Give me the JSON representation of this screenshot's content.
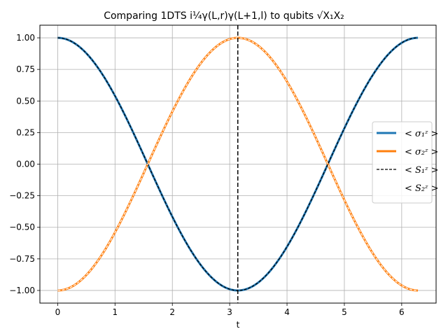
{
  "chart_data": {
    "type": "line",
    "title": "Comparing 1DTS i¼γ(L,r)γ(L+1,l) to qubits √X₁X₂",
    "xlabel": "t",
    "ylabel": "",
    "xlim": [
      -0.31,
      6.6
    ],
    "ylim": [
      -1.1,
      1.1
    ],
    "xticks": [
      "0",
      "1",
      "2",
      "3",
      "4",
      "5",
      "6"
    ],
    "yticks": [
      "1.00",
      "0.75",
      "0.50",
      "0.25",
      "0.00",
      "−0.25",
      "−0.50",
      "−0.75",
      "−1.00"
    ],
    "grid": true,
    "legend_position": "center-right",
    "vline": {
      "x": 3.1416,
      "style": "dashed",
      "color": "#000000"
    },
    "x_range": [
      0,
      6.2832
    ],
    "series": [
      {
        "name": "< σ₁ᶻ >",
        "function": "cos(t)",
        "color": "#1f77b4",
        "style": "solid-thick",
        "points": [
          [
            0,
            1.0
          ],
          [
            0.785,
            0.707
          ],
          [
            1.571,
            0.0
          ],
          [
            2.356,
            -0.707
          ],
          [
            3.142,
            -1.0
          ],
          [
            3.927,
            -0.707
          ],
          [
            4.712,
            0.0
          ],
          [
            5.498,
            0.707
          ],
          [
            6.283,
            1.0
          ]
        ]
      },
      {
        "name": "< σ₂ᶻ >",
        "function": "-cos(t)",
        "color": "#ff7f0e",
        "style": "solid-thick",
        "points": [
          [
            0,
            -1.0
          ],
          [
            0.785,
            -0.707
          ],
          [
            1.571,
            0.0
          ],
          [
            2.356,
            0.707
          ],
          [
            3.142,
            1.0
          ],
          [
            3.927,
            0.707
          ],
          [
            4.712,
            0.0
          ],
          [
            5.498,
            -0.707
          ],
          [
            6.283,
            -1.0
          ]
        ]
      },
      {
        "name": "< S₁ᶻ >",
        "function": "cos(t)",
        "color": "#000000",
        "style": "dashed"
      },
      {
        "name": "< S₂ᶻ >",
        "function": "-cos(t)",
        "color": "#ffffff",
        "style": "dashed"
      }
    ]
  }
}
